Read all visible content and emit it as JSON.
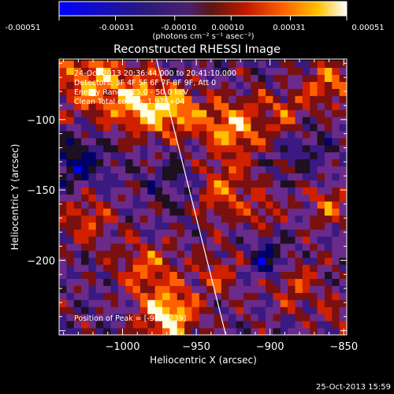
{
  "window": {
    "datestamp": "25-Oct-2013 15:59"
  },
  "colorbar": {
    "tick_labels": [
      "-0.00051",
      "-0.00031",
      "-0.00010",
      "0.00010",
      "0.00031",
      "0.00051"
    ],
    "unit": "(photons cm⁻² s⁻¹ asec⁻²)"
  },
  "annotations": {
    "time_range": "24-Oct-2013 20:36:44.000 to 20:41:10.000",
    "detectors": "Detectors: 3F 4F 5F 6F 7F 8F 9F, Att 0",
    "energy_range": "Energy Range: 25.0 - 50.0 keV",
    "clean": "Clean     Total counts: 1.97E+04",
    "peak": "Position of Peak = [-969,-239]"
  },
  "chart_data": {
    "type": "heatmap",
    "title": "Reconstructed RHESSI Image",
    "xlabel": "Heliocentric X (arcsec)",
    "ylabel": "Heliocentric Y (arcsec)",
    "xlim": [
      -1043,
      -848
    ],
    "ylim": [
      -253,
      -57
    ],
    "x_ticks": [
      -1000,
      -950,
      -900,
      -850
    ],
    "y_ticks": [
      -100,
      -150,
      -200
    ],
    "x_tick_labels": [
      "−1000",
      "−950",
      "−900",
      "−850"
    ],
    "y_tick_labels": [
      "−100",
      "−150",
      "−200"
    ],
    "colorbar_range": [
      -0.00051,
      0.00051
    ],
    "peak_position": [
      -969,
      -239
    ],
    "limb_line": {
      "x": [
        -977,
        -930
      ],
      "y": [
        -57,
        -253
      ]
    },
    "pixel_size_arcsec": 5,
    "grid_size": [
      39,
      39
    ],
    "intensity_features": [
      {
        "x": -1020,
        "y": -72,
        "sigma": 18,
        "amp": 0.00038
      },
      {
        "x": -985,
        "y": -90,
        "sigma": 14,
        "amp": 0.00045
      },
      {
        "x": -960,
        "y": -95,
        "sigma": 12,
        "amp": 0.00032
      },
      {
        "x": -925,
        "y": -105,
        "sigma": 14,
        "amp": 0.0004
      },
      {
        "x": -890,
        "y": -95,
        "sigma": 12,
        "amp": 0.00022
      },
      {
        "x": -860,
        "y": -75,
        "sigma": 12,
        "amp": 0.00028
      },
      {
        "x": -935,
        "y": -150,
        "sigma": 15,
        "amp": 0.0003
      },
      {
        "x": -905,
        "y": -165,
        "sigma": 10,
        "amp": 0.00018
      },
      {
        "x": -860,
        "y": -160,
        "sigma": 10,
        "amp": 0.00025
      },
      {
        "x": -1025,
        "y": -170,
        "sigma": 14,
        "amp": 0.00022
      },
      {
        "x": -985,
        "y": -205,
        "sigma": 14,
        "amp": 0.0003
      },
      {
        "x": -969,
        "y": -239,
        "sigma": 13,
        "amp": 0.00052
      },
      {
        "x": -935,
        "y": -210,
        "sigma": 12,
        "amp": 0.0002
      },
      {
        "x": -885,
        "y": -215,
        "sigma": 13,
        "amp": 0.00024
      },
      {
        "x": -855,
        "y": -240,
        "sigma": 10,
        "amp": 0.00015
      },
      {
        "x": -1030,
        "y": -130,
        "sigma": 14,
        "amp": -0.00025
      },
      {
        "x": -960,
        "y": -145,
        "sigma": 14,
        "amp": -0.00018
      },
      {
        "x": -900,
        "y": -200,
        "sigma": 10,
        "amp": -0.0003
      },
      {
        "x": -875,
        "y": -120,
        "sigma": 12,
        "amp": -0.00014
      }
    ],
    "palette": [
      "#0000ff",
      "#000066",
      "#1e1020",
      "#3a1a80",
      "#6a2a8a",
      "#7a1010",
      "#d02000",
      "#ff6000",
      "#ffc000",
      "#ffffe0"
    ]
  }
}
